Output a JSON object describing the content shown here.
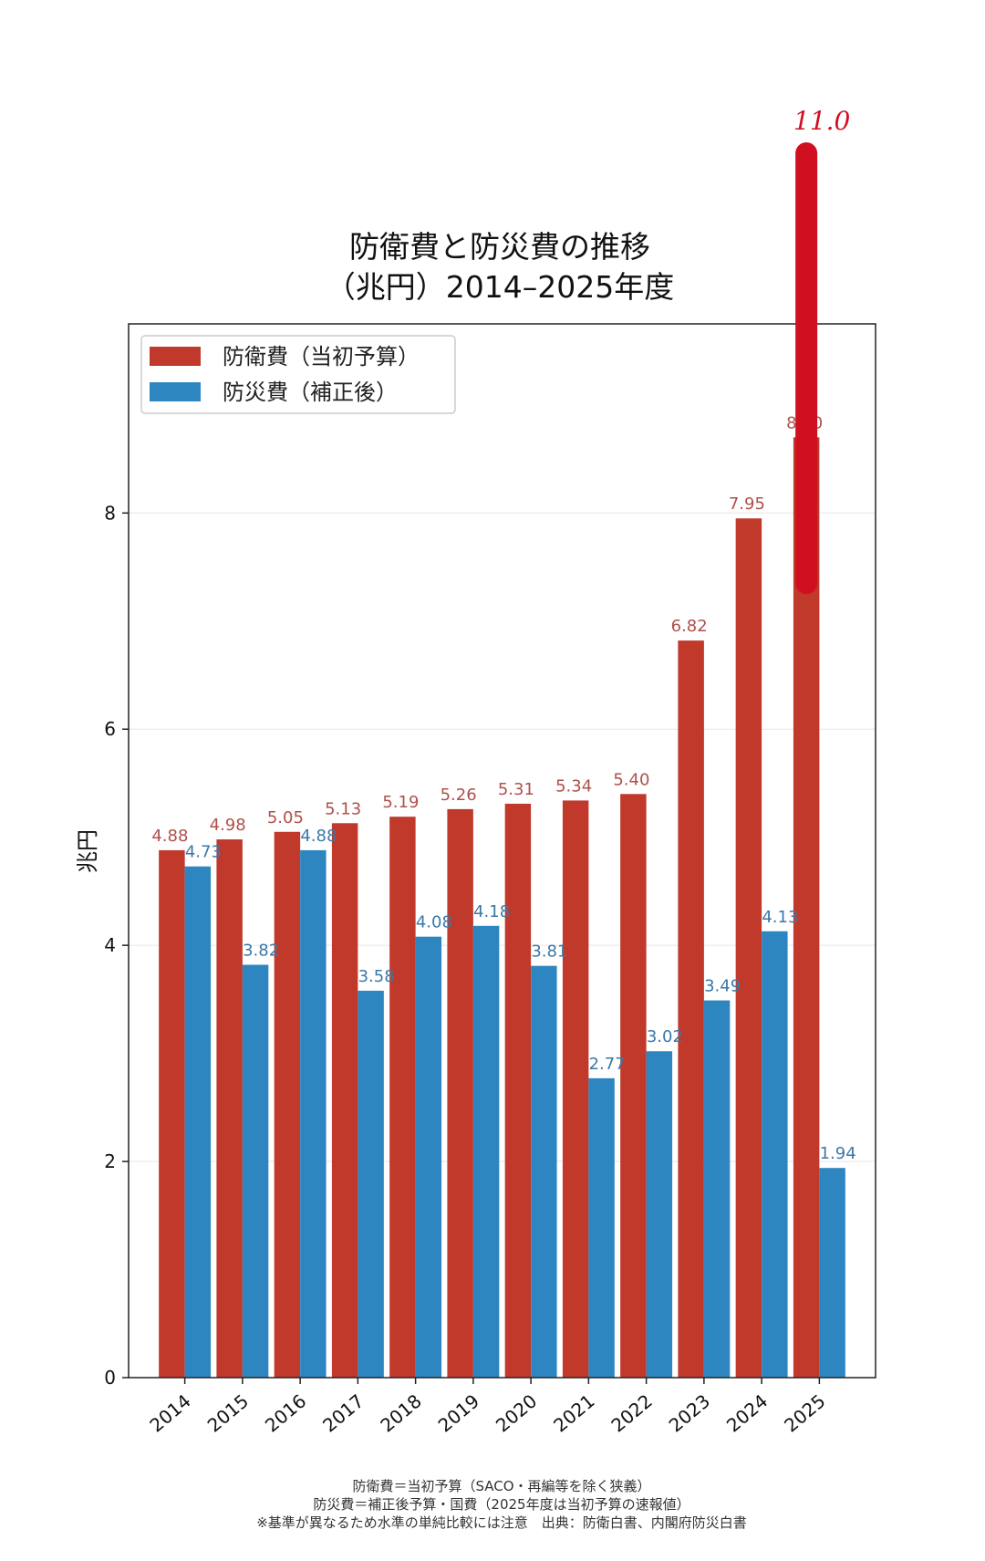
{
  "chart_data": {
    "type": "bar",
    "title": "防衛費と防災費の推移",
    "subtitle": "（兆円）2014–2025年度",
    "ylabel": "兆円",
    "xlabel": "",
    "ylim": [
      0,
      9.75
    ],
    "yticks": [
      "0",
      "2",
      "4",
      "6",
      "8"
    ],
    "categories": [
      "2014",
      "2015",
      "2016",
      "2017",
      "2018",
      "2019",
      "2020",
      "2021",
      "2022",
      "2023",
      "2024",
      "2025"
    ],
    "grid": "horizontal",
    "legend_position": "top-left",
    "series": [
      {
        "name": "防衛費（当初予算）",
        "color": "#c0392b",
        "values": [
          4.88,
          4.98,
          5.05,
          5.13,
          5.19,
          5.26,
          5.31,
          5.34,
          5.4,
          6.82,
          7.95,
          8.7
        ],
        "labels": [
          "4.88",
          "4.98",
          "5.05",
          "5.13",
          "5.19",
          "5.26",
          "5.31",
          "5.34",
          "5.40",
          "6.82",
          "7.95",
          "8.70"
        ]
      },
      {
        "name": "防災費（補正後）",
        "color": "#2e86c1",
        "values": [
          4.73,
          3.82,
          4.88,
          3.58,
          4.08,
          4.18,
          3.81,
          2.77,
          3.02,
          3.49,
          4.13,
          1.94
        ],
        "labels": [
          "4.73",
          "3.82",
          "4.88",
          "3.58",
          "4.08",
          "4.18",
          "3.81",
          "2.77",
          "3.02",
          "3.49",
          "4.13",
          "1.94"
        ]
      }
    ],
    "annotations": [
      {
        "kind": "handwritten-bar",
        "category": "2025",
        "from": 7.35,
        "to": 11.0,
        "text": "11.0",
        "color": "#d01020"
      }
    ],
    "notes": [
      "防衛費＝当初予算（SACO・再編等を除く狭義）",
      "防災費＝補正後予算・国費（2025年度は当初予算の速報値）",
      "※基準が異なるため水準の単純比較には注意　出典：防衛白書、内閣府防災白書"
    ]
  }
}
